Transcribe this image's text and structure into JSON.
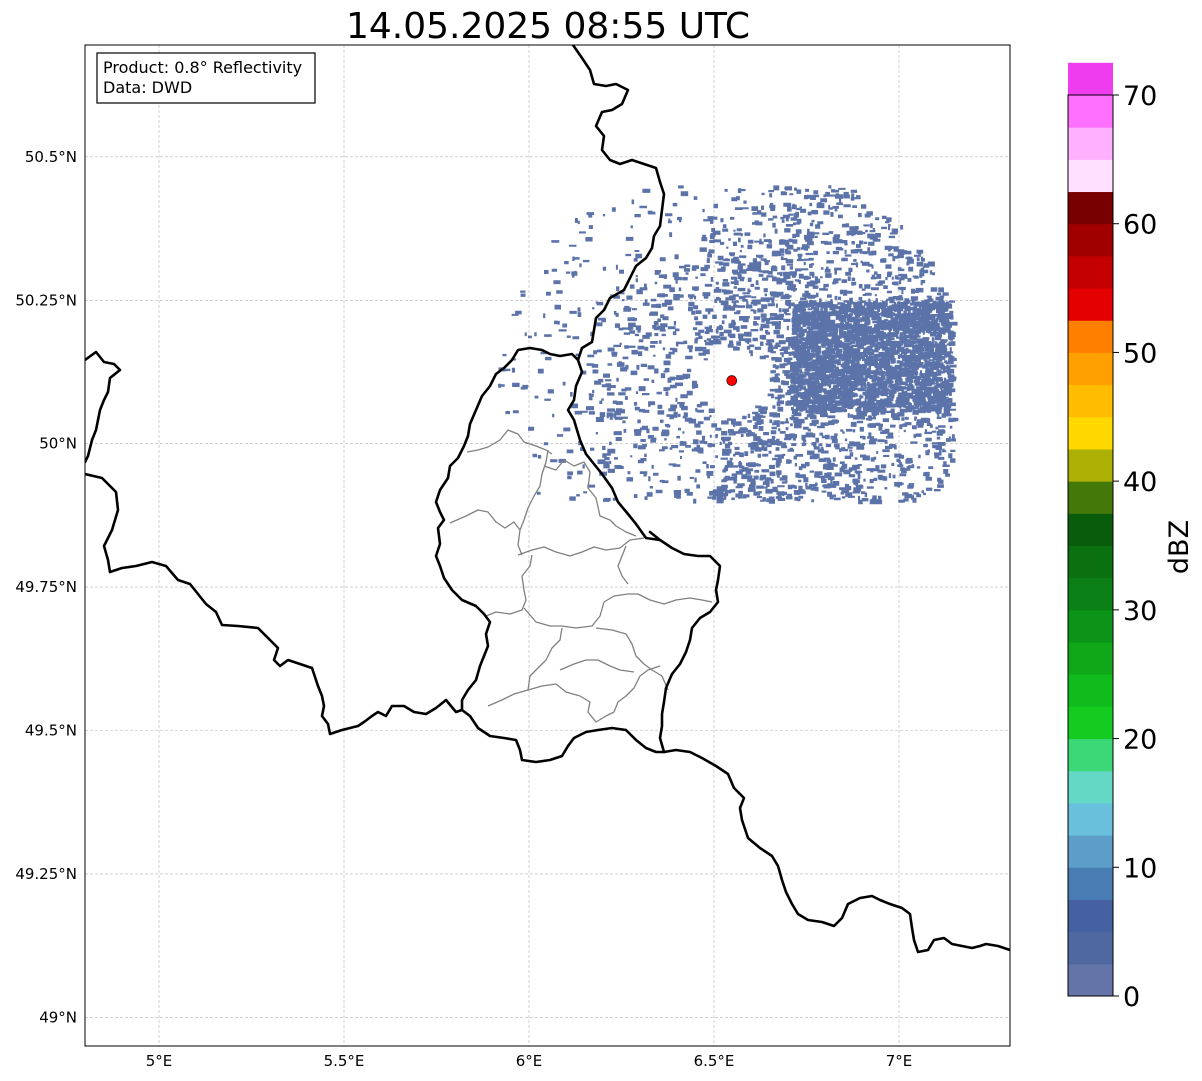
{
  "title": "14.05.2025 08:55 UTC",
  "info_box": {
    "line1": "Product: 0.8° Reflectivity",
    "line2": "Data: DWD"
  },
  "map": {
    "lon_range": [
      4.8,
      7.3
    ],
    "lat_range": [
      48.95,
      50.695
    ],
    "x_ticks": [
      {
        "v": 5.0,
        "label": "5°E"
      },
      {
        "v": 5.5,
        "label": "5.5°E"
      },
      {
        "v": 6.0,
        "label": "6°E"
      },
      {
        "v": 6.5,
        "label": "6.5°E"
      },
      {
        "v": 7.0,
        "label": "7°E"
      }
    ],
    "y_ticks": [
      {
        "v": 49.0,
        "label": "49°N"
      },
      {
        "v": 49.25,
        "label": "49.25°N"
      },
      {
        "v": 49.5,
        "label": "49.5°N"
      },
      {
        "v": 49.75,
        "label": "49.75°N"
      },
      {
        "v": 50.0,
        "label": "50°N"
      },
      {
        "v": 50.25,
        "label": "50.25°N"
      },
      {
        "v": 50.5,
        "label": "50.5°N"
      }
    ],
    "gridlines": true,
    "radar_site": {
      "lon": 6.548,
      "lat": 50.11,
      "color": "#ff0000"
    },
    "echo_color": "#4a64a0"
  },
  "colorbar": {
    "label": "dBZ",
    "min": 0,
    "max": 70,
    "step": 2.5,
    "ticks": [
      {
        "v": 0,
        "label": "0"
      },
      {
        "v": 10,
        "label": "10"
      },
      {
        "v": 20,
        "label": "20"
      },
      {
        "v": 30,
        "label": "30"
      },
      {
        "v": 40,
        "label": "40"
      },
      {
        "v": 50,
        "label": "50"
      },
      {
        "v": 60,
        "label": "60"
      },
      {
        "v": 70,
        "label": "70"
      }
    ],
    "colors": [
      "#6474a8",
      "#5068a0",
      "#4460a0",
      "#4a7cb4",
      "#5c9ec8",
      "#68c0dc",
      "#64d8c4",
      "#3cd878",
      "#14cc20",
      "#10bc1c",
      "#10a818",
      "#0c9418",
      "#0a8016",
      "#0a7010",
      "#085c0c",
      "#447808",
      "#acb004",
      "#ffd800",
      "#ffbc00",
      "#ffa000",
      "#ff8000",
      "#e40000",
      "#c40000",
      "#a00000",
      "#780000",
      "#ffe0ff",
      "#ffb0ff",
      "#ff70ff",
      "#ee3cee"
    ]
  }
}
